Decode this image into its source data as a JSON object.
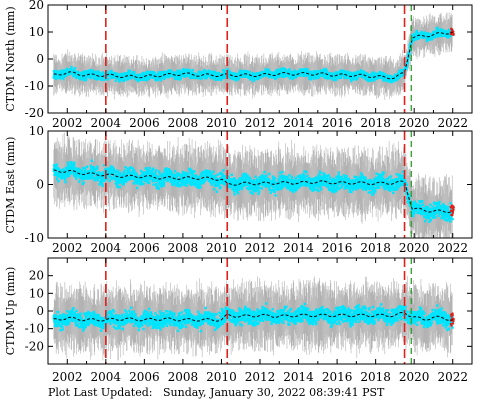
{
  "footer": {
    "label": "Plot Last Updated:",
    "timestamp": "Sunday, January 30, 2022 08:39:41 PST"
  },
  "colors": {
    "data": "#00e5ff",
    "error_bars": "#b3b3b3",
    "trend": "#000000",
    "event_red": "#e0201b",
    "event_green": "#2ca02c",
    "recent_points": "#e0201b"
  },
  "chart_data": [
    {
      "type": "scatter",
      "ylabel": "CTDM North (mm)",
      "xlim": [
        2001,
        2023
      ],
      "ylim": [
        -20,
        20
      ],
      "xticks": [
        2002,
        2004,
        2006,
        2008,
        2010,
        2012,
        2014,
        2016,
        2018,
        2020,
        2022
      ],
      "yticks": [
        -20,
        -10,
        0,
        10,
        20
      ],
      "events_red": [
        2004.0,
        2010.3,
        2019.5
      ],
      "events_green": [
        2019.85
      ],
      "trend": {
        "x": [
          2001.3,
          2002,
          2003,
          2004,
          2005,
          2006,
          2007,
          2008,
          2009,
          2010,
          2010.3,
          2011,
          2012,
          2013,
          2014,
          2015,
          2016,
          2017,
          2018,
          2019,
          2019.5,
          2019.9,
          2020.5,
          2021,
          2021.5,
          2022
        ],
        "y": [
          -6,
          -5,
          -6,
          -6,
          -6.5,
          -6.5,
          -6,
          -5.5,
          -6,
          -6,
          -6,
          -6,
          -6,
          -5.5,
          -5.5,
          -5.5,
          -6,
          -6,
          -6.5,
          -7,
          -5,
          8,
          8.5,
          9,
          9.5,
          10
        ]
      },
      "scatter_band": [
        -3,
        3
      ],
      "errorbar_band": [
        -7,
        7
      ]
    },
    {
      "type": "scatter",
      "ylabel": "CTDM East (mm)",
      "xlim": [
        2001,
        2023
      ],
      "ylim": [
        -10,
        10
      ],
      "xticks": [
        2002,
        2004,
        2006,
        2008,
        2010,
        2012,
        2014,
        2016,
        2018,
        2020,
        2022
      ],
      "yticks": [
        -10,
        0,
        10
      ],
      "events_red": [
        2004.0,
        2010.3,
        2019.5
      ],
      "events_green": [
        2019.85
      ],
      "trend": {
        "x": [
          2001.3,
          2002,
          2003,
          2004,
          2005,
          2006,
          2007,
          2008,
          2009,
          2010,
          2010.3,
          2011,
          2012,
          2013,
          2014,
          2015,
          2016,
          2017,
          2018,
          2019,
          2019.5,
          2019.9,
          2020.5,
          2021,
          2021.5,
          2022
        ],
        "y": [
          2.5,
          2.5,
          2,
          1.8,
          1.5,
          1.5,
          1.2,
          1.2,
          1.2,
          1,
          0,
          0.2,
          0.2,
          0.3,
          0.3,
          0.5,
          0.3,
          0.3,
          0.2,
          0.3,
          0.5,
          -4.5,
          -4.8,
          -5,
          -5,
          -5
        ]
      },
      "scatter_band": [
        -3,
        3
      ],
      "errorbar_band": [
        -6,
        6
      ]
    },
    {
      "type": "scatter",
      "ylabel": "CTDM Up (mm)",
      "xlim": [
        2001,
        2023
      ],
      "ylim": [
        -30,
        30
      ],
      "xticks": [
        2002,
        2004,
        2006,
        2008,
        2010,
        2012,
        2014,
        2016,
        2018,
        2020,
        2022
      ],
      "yticks": [
        -20,
        -10,
        0,
        10,
        20
      ],
      "events_red": [
        2004.0,
        2010.3,
        2019.5
      ],
      "events_green": [
        2019.85
      ],
      "trend": {
        "x": [
          2001.3,
          2002,
          2003,
          2004,
          2005,
          2006,
          2007,
          2008,
          2009,
          2010,
          2010.3,
          2011,
          2012,
          2013,
          2014,
          2015,
          2016,
          2017,
          2018,
          2019,
          2019.5,
          2019.9,
          2020.5,
          2021,
          2021.5,
          2022
        ],
        "y": [
          -5,
          -4,
          -5,
          -5,
          -4.5,
          -5,
          -4.5,
          -5,
          -5,
          -5,
          -2.5,
          -3,
          -2.5,
          -3,
          -2.5,
          -2.5,
          -2.5,
          -2.5,
          -2.5,
          -2.5,
          -1,
          -3,
          -5,
          -3.5,
          -4,
          -5
        ]
      },
      "scatter_band": [
        -9,
        9
      ],
      "errorbar_band": [
        -18,
        18
      ]
    }
  ]
}
